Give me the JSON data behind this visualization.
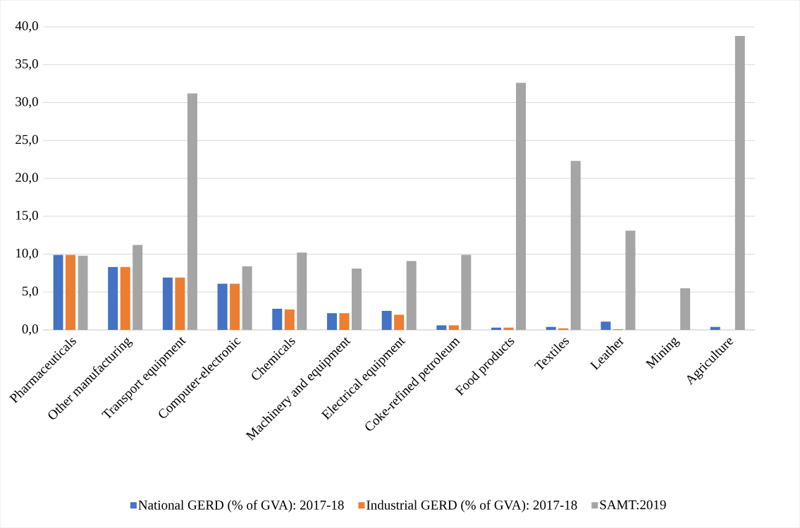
{
  "chart_data": {
    "type": "bar",
    "categories": [
      "Pharmaceuticals",
      "Other manufacturing",
      "Transport equipment",
      "Computer-electronic",
      "Chemicals",
      "Machinery and equipment",
      "Electrical equipment",
      "Coke-refined petroleum",
      "Food products",
      "Textiles",
      "Leather",
      "Mining",
      "Agriculture"
    ],
    "series": [
      {
        "name": "National GERD (% of GVA): 2017-18",
        "color": "#4472c4",
        "values": [
          9.9,
          8.3,
          6.9,
          6.1,
          2.8,
          2.2,
          2.5,
          0.6,
          0.3,
          0.4,
          1.1,
          0.0,
          0.4
        ]
      },
      {
        "name": "Industrial GERD (% of GVA): 2017-18",
        "color": "#ed7d31",
        "values": [
          9.9,
          8.3,
          6.9,
          6.1,
          2.7,
          2.2,
          2.0,
          0.6,
          0.3,
          0.2,
          0.1,
          0.0,
          0.0
        ]
      },
      {
        "name": "SAMT:2019",
        "color": "#a5a5a5",
        "values": [
          9.8,
          11.2,
          31.2,
          8.4,
          10.2,
          8.1,
          9.1,
          9.9,
          32.6,
          22.3,
          13.1,
          5.5,
          38.8
        ]
      }
    ],
    "ylim": [
      0,
      40
    ],
    "yticks": [
      {
        "value": 0,
        "label": "0,0"
      },
      {
        "value": 5,
        "label": "5,0"
      },
      {
        "value": 10,
        "label": "10,0"
      },
      {
        "value": 15,
        "label": "15,0"
      },
      {
        "value": 20,
        "label": "20,0"
      },
      {
        "value": 25,
        "label": "25,0"
      },
      {
        "value": 30,
        "label": "30,0"
      },
      {
        "value": 35,
        "label": "35,0"
      },
      {
        "value": 40,
        "label": "40,0"
      }
    ],
    "grid": "y",
    "legend": "bottom"
  }
}
